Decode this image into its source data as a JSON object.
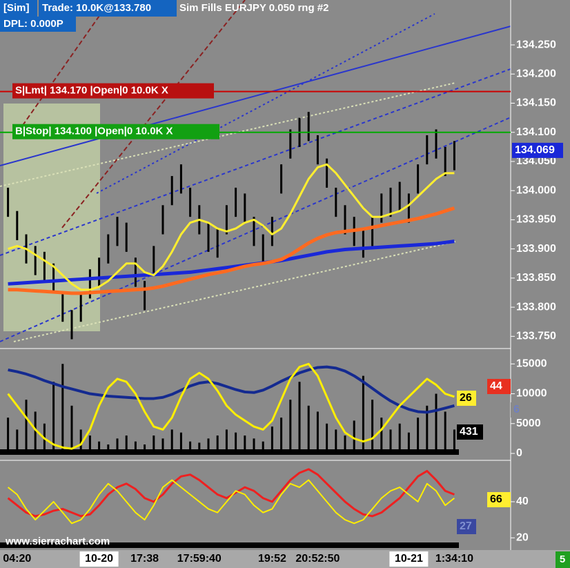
{
  "header": {
    "sim": "[Sim]",
    "trade": "Trade: 10.0K@133.780",
    "info": "Sim Fills  EURJPY  0.050 rng  #2",
    "dpl": "DPL: 0.000P"
  },
  "watermark": "www.sierrachart.com",
  "corner": "5",
  "chart_data": [
    {
      "type": "range_bar",
      "color": "#000000",
      "categories": [
        null,
        "04:20",
        null,
        null,
        null,
        null,
        null,
        null,
        null,
        null,
        "10-20",
        null,
        null,
        null,
        null,
        "17:38",
        null,
        null,
        null,
        null,
        null,
        "17:59:40",
        null,
        null,
        null,
        null,
        null,
        null,
        null,
        "19:52",
        null,
        null,
        null,
        null,
        "20:52:50",
        null,
        null,
        null,
        null,
        null,
        null,
        null,
        null,
        null,
        "10-21",
        null,
        null,
        null,
        null,
        "1:34:10"
      ],
      "high": [
        134.005,
        133.965,
        133.925,
        133.905,
        133.895,
        133.875,
        133.825,
        133.795,
        133.825,
        133.865,
        133.885,
        133.925,
        133.955,
        133.945,
        133.885,
        133.845,
        133.905,
        133.975,
        134.025,
        134.045,
        134.005,
        133.975,
        133.945,
        133.935,
        133.975,
        134.005,
        133.995,
        133.955,
        133.925,
        133.955,
        134.045,
        134.105,
        134.125,
        134.135,
        134.095,
        134.055,
        134.005,
        133.975,
        133.955,
        133.935,
        133.955,
        133.995,
        134.005,
        134.015,
        133.995,
        134.045,
        134.095,
        134.105,
        134.075,
        134.085
      ],
      "low": [
        133.955,
        133.915,
        133.875,
        133.855,
        133.845,
        133.825,
        133.775,
        133.745,
        133.775,
        133.815,
        133.835,
        133.875,
        133.905,
        133.895,
        133.835,
        133.795,
        133.855,
        133.925,
        133.975,
        133.995,
        133.955,
        133.925,
        133.895,
        133.885,
        133.925,
        133.955,
        133.945,
        133.905,
        133.875,
        133.905,
        133.995,
        134.055,
        134.075,
        134.085,
        134.045,
        134.005,
        133.955,
        133.925,
        133.905,
        133.885,
        133.905,
        133.945,
        133.955,
        133.965,
        133.945,
        133.995,
        134.045,
        134.055,
        134.025,
        134.035
      ],
      "series": [
        {
          "color": "#1a28d8",
          "width": 5,
          "values": [
            133.84,
            133.841,
            133.842,
            133.843,
            133.844,
            133.845,
            133.846,
            133.847,
            133.848,
            133.849,
            133.85,
            133.851,
            133.852,
            133.853,
            133.854,
            133.855,
            133.856,
            133.857,
            133.858,
            133.859,
            133.86,
            133.862,
            133.864,
            133.866,
            133.868,
            133.87,
            133.872,
            133.874,
            133.876,
            133.878,
            133.88,
            133.883,
            133.886,
            133.889,
            133.892,
            133.895,
            133.897,
            133.899,
            133.9,
            133.901,
            133.902,
            133.903,
            133.904,
            133.905,
            133.906,
            133.907,
            133.908,
            133.909,
            133.911,
            133.913
          ]
        },
        {
          "color": "#ff6a20",
          "width": 5,
          "values": [
            133.83,
            133.83,
            133.829,
            133.828,
            133.827,
            133.826,
            133.825,
            133.824,
            133.824,
            133.825,
            133.826,
            133.827,
            133.828,
            133.829,
            133.83,
            133.831,
            133.833,
            133.836,
            133.84,
            133.844,
            133.848,
            133.852,
            133.856,
            133.859,
            133.862,
            133.866,
            133.87,
            133.873,
            133.875,
            133.878,
            133.882,
            133.89,
            133.9,
            133.91,
            133.918,
            133.924,
            133.928,
            133.93,
            133.932,
            133.934,
            133.937,
            133.94,
            133.943,
            133.946,
            133.949,
            133.952,
            133.956,
            133.96,
            133.965,
            133.97
          ]
        },
        {
          "color": "#ffee30",
          "width": 3,
          "values": [
            133.9,
            133.905,
            133.9,
            133.89,
            133.88,
            133.87,
            133.855,
            133.84,
            133.83,
            133.83,
            133.835,
            133.845,
            133.86,
            133.875,
            133.875,
            133.86,
            133.855,
            133.87,
            133.895,
            133.925,
            133.945,
            133.95,
            133.945,
            133.935,
            133.93,
            133.935,
            133.945,
            133.95,
            133.94,
            133.925,
            133.935,
            133.96,
            133.99,
            134.02,
            134.04,
            134.045,
            134.03,
            134.01,
            133.99,
            133.97,
            133.955,
            133.955,
            133.96,
            133.965,
            133.975,
            133.99,
            134.005,
            134.02,
            134.03,
            134.03
          ]
        }
      ],
      "orders": [
        {
          "label": "S|Lmt| 134.170 |Open|0  10.0K  X",
          "value": 134.17,
          "color": "#b81010",
          "line_color": "#cc0000"
        },
        {
          "label": "B|Stop| 134.100 |Open|0  10.0K  X",
          "value": 134.1,
          "color": "#12a012",
          "line_color": "#00aa00"
        }
      ],
      "last_value": 134.069,
      "ylim": [
        133.735,
        134.327
      ],
      "yticks": [
        {
          "value": 133.75,
          "label": "133.750"
        },
        {
          "value": 133.8,
          "label": "133.800"
        },
        {
          "value": 133.85,
          "label": "133.850"
        },
        {
          "value": 133.9,
          "label": "133.900"
        },
        {
          "value": 133.95,
          "label": "133.950"
        },
        {
          "value": 134.0,
          "label": "134.000"
        },
        {
          "value": 134.05,
          "label": "134.050"
        },
        {
          "value": 134.1,
          "label": "134.100"
        },
        {
          "value": 134.15,
          "label": "134.150"
        },
        {
          "value": 134.2,
          "label": "134.200"
        },
        {
          "value": 134.25,
          "label": "134.250"
        }
      ]
    },
    {
      "type": "bar",
      "color": "#000000",
      "values": [
        6000,
        4000,
        9000,
        7000,
        5000,
        12000,
        15000,
        8000,
        4000,
        3000,
        2000,
        1500,
        2500,
        3000,
        2000,
        1500,
        3000,
        2500,
        4000,
        3500,
        2000,
        1800,
        2500,
        3000,
        4000,
        3500,
        3000,
        2500,
        2000,
        4500,
        6000,
        9000,
        12000,
        8000,
        7000,
        5000,
        4000,
        3000,
        5500,
        13000,
        9000,
        6000,
        4000,
        5000,
        3500,
        6000,
        8000,
        10000,
        7000,
        4000
      ],
      "series": [
        {
          "color": "#142a90",
          "width": 4,
          "values": [
            14000,
            13700,
            13300,
            12800,
            12200,
            11700,
            11200,
            10800,
            10400,
            10000,
            9800,
            9600,
            9500,
            9400,
            9300,
            9200,
            9200,
            9400,
            9900,
            10600,
            11300,
            11800,
            12000,
            11700,
            11200,
            10700,
            10300,
            10200,
            10600,
            11300,
            12100,
            12800,
            13500,
            14000,
            14400,
            14500,
            14300,
            13800,
            13000,
            12000,
            10900,
            9800,
            8800,
            8000,
            7400,
            7000,
            6900,
            7200,
            7600,
            8000
          ]
        },
        {
          "color": "#ffee00",
          "width": 3,
          "values": [
            10000,
            8000,
            6000,
            4000,
            2500,
            1500,
            1000,
            800,
            1500,
            4000,
            8000,
            11000,
            12500,
            12000,
            10000,
            7000,
            4500,
            4000,
            6000,
            9500,
            12500,
            13500,
            12500,
            10500,
            8000,
            6500,
            5500,
            4500,
            4000,
            5500,
            9000,
            12500,
            14500,
            15000,
            13000,
            9500,
            6000,
            3500,
            2500,
            2000,
            2500,
            4000,
            6000,
            8000,
            9500,
            11000,
            12500,
            11500,
            10000,
            9500
          ]
        }
      ],
      "tags": [
        {
          "value": 44,
          "color": "#e83020",
          "text_color": "#ffffff"
        },
        {
          "value": 26,
          "color": "#ffee30",
          "text_color": "#000000"
        },
        {
          "value": 6,
          "color": "#8a8a8a",
          "text_color": "#7080c0"
        },
        {
          "value": 431,
          "color": "#000000",
          "text_color": "#ffffff"
        }
      ],
      "ylim": [
        0,
        17000
      ],
      "yticks": [
        0,
        5000,
        10000,
        15000
      ]
    },
    {
      "type": "line",
      "series": [
        {
          "color": "#ee2020",
          "width": 3,
          "values": [
            42,
            38,
            34,
            32,
            33,
            35,
            36,
            34,
            32,
            33,
            38,
            44,
            48,
            50,
            47,
            42,
            40,
            44,
            50,
            54,
            55,
            52,
            48,
            44,
            42,
            45,
            48,
            46,
            42,
            40,
            46,
            52,
            56,
            58,
            55,
            50,
            45,
            40,
            36,
            33,
            32,
            34,
            38,
            42,
            48,
            54,
            57,
            52,
            46,
            44
          ]
        },
        {
          "color": "#ffee00",
          "width": 2,
          "values": [
            48,
            44,
            36,
            30,
            35,
            40,
            34,
            28,
            30,
            36,
            44,
            50,
            46,
            40,
            34,
            30,
            38,
            48,
            52,
            48,
            44,
            40,
            36,
            34,
            40,
            46,
            44,
            38,
            34,
            36,
            44,
            50,
            48,
            52,
            46,
            40,
            34,
            30,
            28,
            30,
            36,
            42,
            46,
            48,
            44,
            40,
            50,
            46,
            38,
            42
          ]
        }
      ],
      "tags": [
        {
          "value": 66,
          "color": "#ffee30",
          "text_color": "#000000"
        },
        {
          "value": 27,
          "color": "#3a48a0",
          "text_color": "#8090d0"
        }
      ],
      "ylim": [
        14,
        61
      ],
      "yticks": [
        20,
        40
      ]
    }
  ]
}
